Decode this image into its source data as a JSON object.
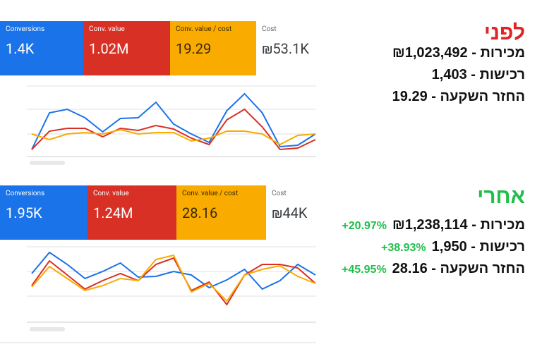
{
  "before": {
    "tiles": [
      {
        "label": "Conversions",
        "value": "1.4K"
      },
      {
        "label": "Conv. value",
        "value": "1.02M"
      },
      {
        "label": "Conv. value / cost",
        "value": "19.29"
      }
    ],
    "cost": {
      "label": "Cost",
      "value": "₪53.1K"
    },
    "series": [
      {
        "color": "#1a73e8",
        "values": [
          13,
          65,
          70,
          58,
          38,
          57,
          58,
          80,
          49,
          35,
          23,
          68,
          92,
          65,
          17,
          19,
          35
        ]
      },
      {
        "color": "#d93025",
        "values": [
          13,
          39,
          43,
          43,
          31,
          43,
          40,
          47,
          42,
          29,
          20,
          55,
          70,
          45,
          13,
          15,
          27
        ]
      },
      {
        "color": "#f9ab00",
        "values": [
          35,
          27,
          35,
          37,
          35,
          41,
          35,
          37,
          37,
          25,
          29,
          39,
          39,
          35,
          20,
          33,
          35
        ]
      }
    ],
    "heading": "לפני",
    "lines": [
      "מכירות - ₪1,023,492",
      "רכישות - 1,403",
      "החזר השקעה - 19.29"
    ]
  },
  "after": {
    "tiles": [
      {
        "label": "Conversions",
        "value": "1.95K"
      },
      {
        "label": "Conv. value",
        "value": "1.24M"
      },
      {
        "label": "Conv. value / cost",
        "value": "28.16"
      }
    ],
    "cost": {
      "label": "Cost",
      "value": "₪44K"
    },
    "series": [
      {
        "color": "#1a73e8",
        "values": [
          67,
          97,
          80,
          60,
          70,
          82,
          62,
          63,
          70,
          65,
          47,
          58,
          73,
          45,
          57,
          80,
          65
        ]
      },
      {
        "color": "#d93025",
        "values": [
          50,
          85,
          65,
          45,
          57,
          67,
          57,
          80,
          89,
          43,
          55,
          23,
          65,
          80,
          80,
          75,
          53
        ]
      },
      {
        "color": "#f9ab00",
        "values": [
          48,
          77,
          60,
          43,
          50,
          60,
          57,
          87,
          93,
          41,
          53,
          28,
          65,
          73,
          78,
          63,
          53
        ]
      }
    ],
    "heading": "אחרי",
    "lines": [
      {
        "text": "מכירות - ₪1,238,114",
        "change": "+20.97%"
      },
      {
        "text": "רכישות - 1,950",
        "change": "+38.93%"
      },
      {
        "text": "החזר השקעה - 28.16",
        "change": "+45.95%"
      }
    ]
  }
}
